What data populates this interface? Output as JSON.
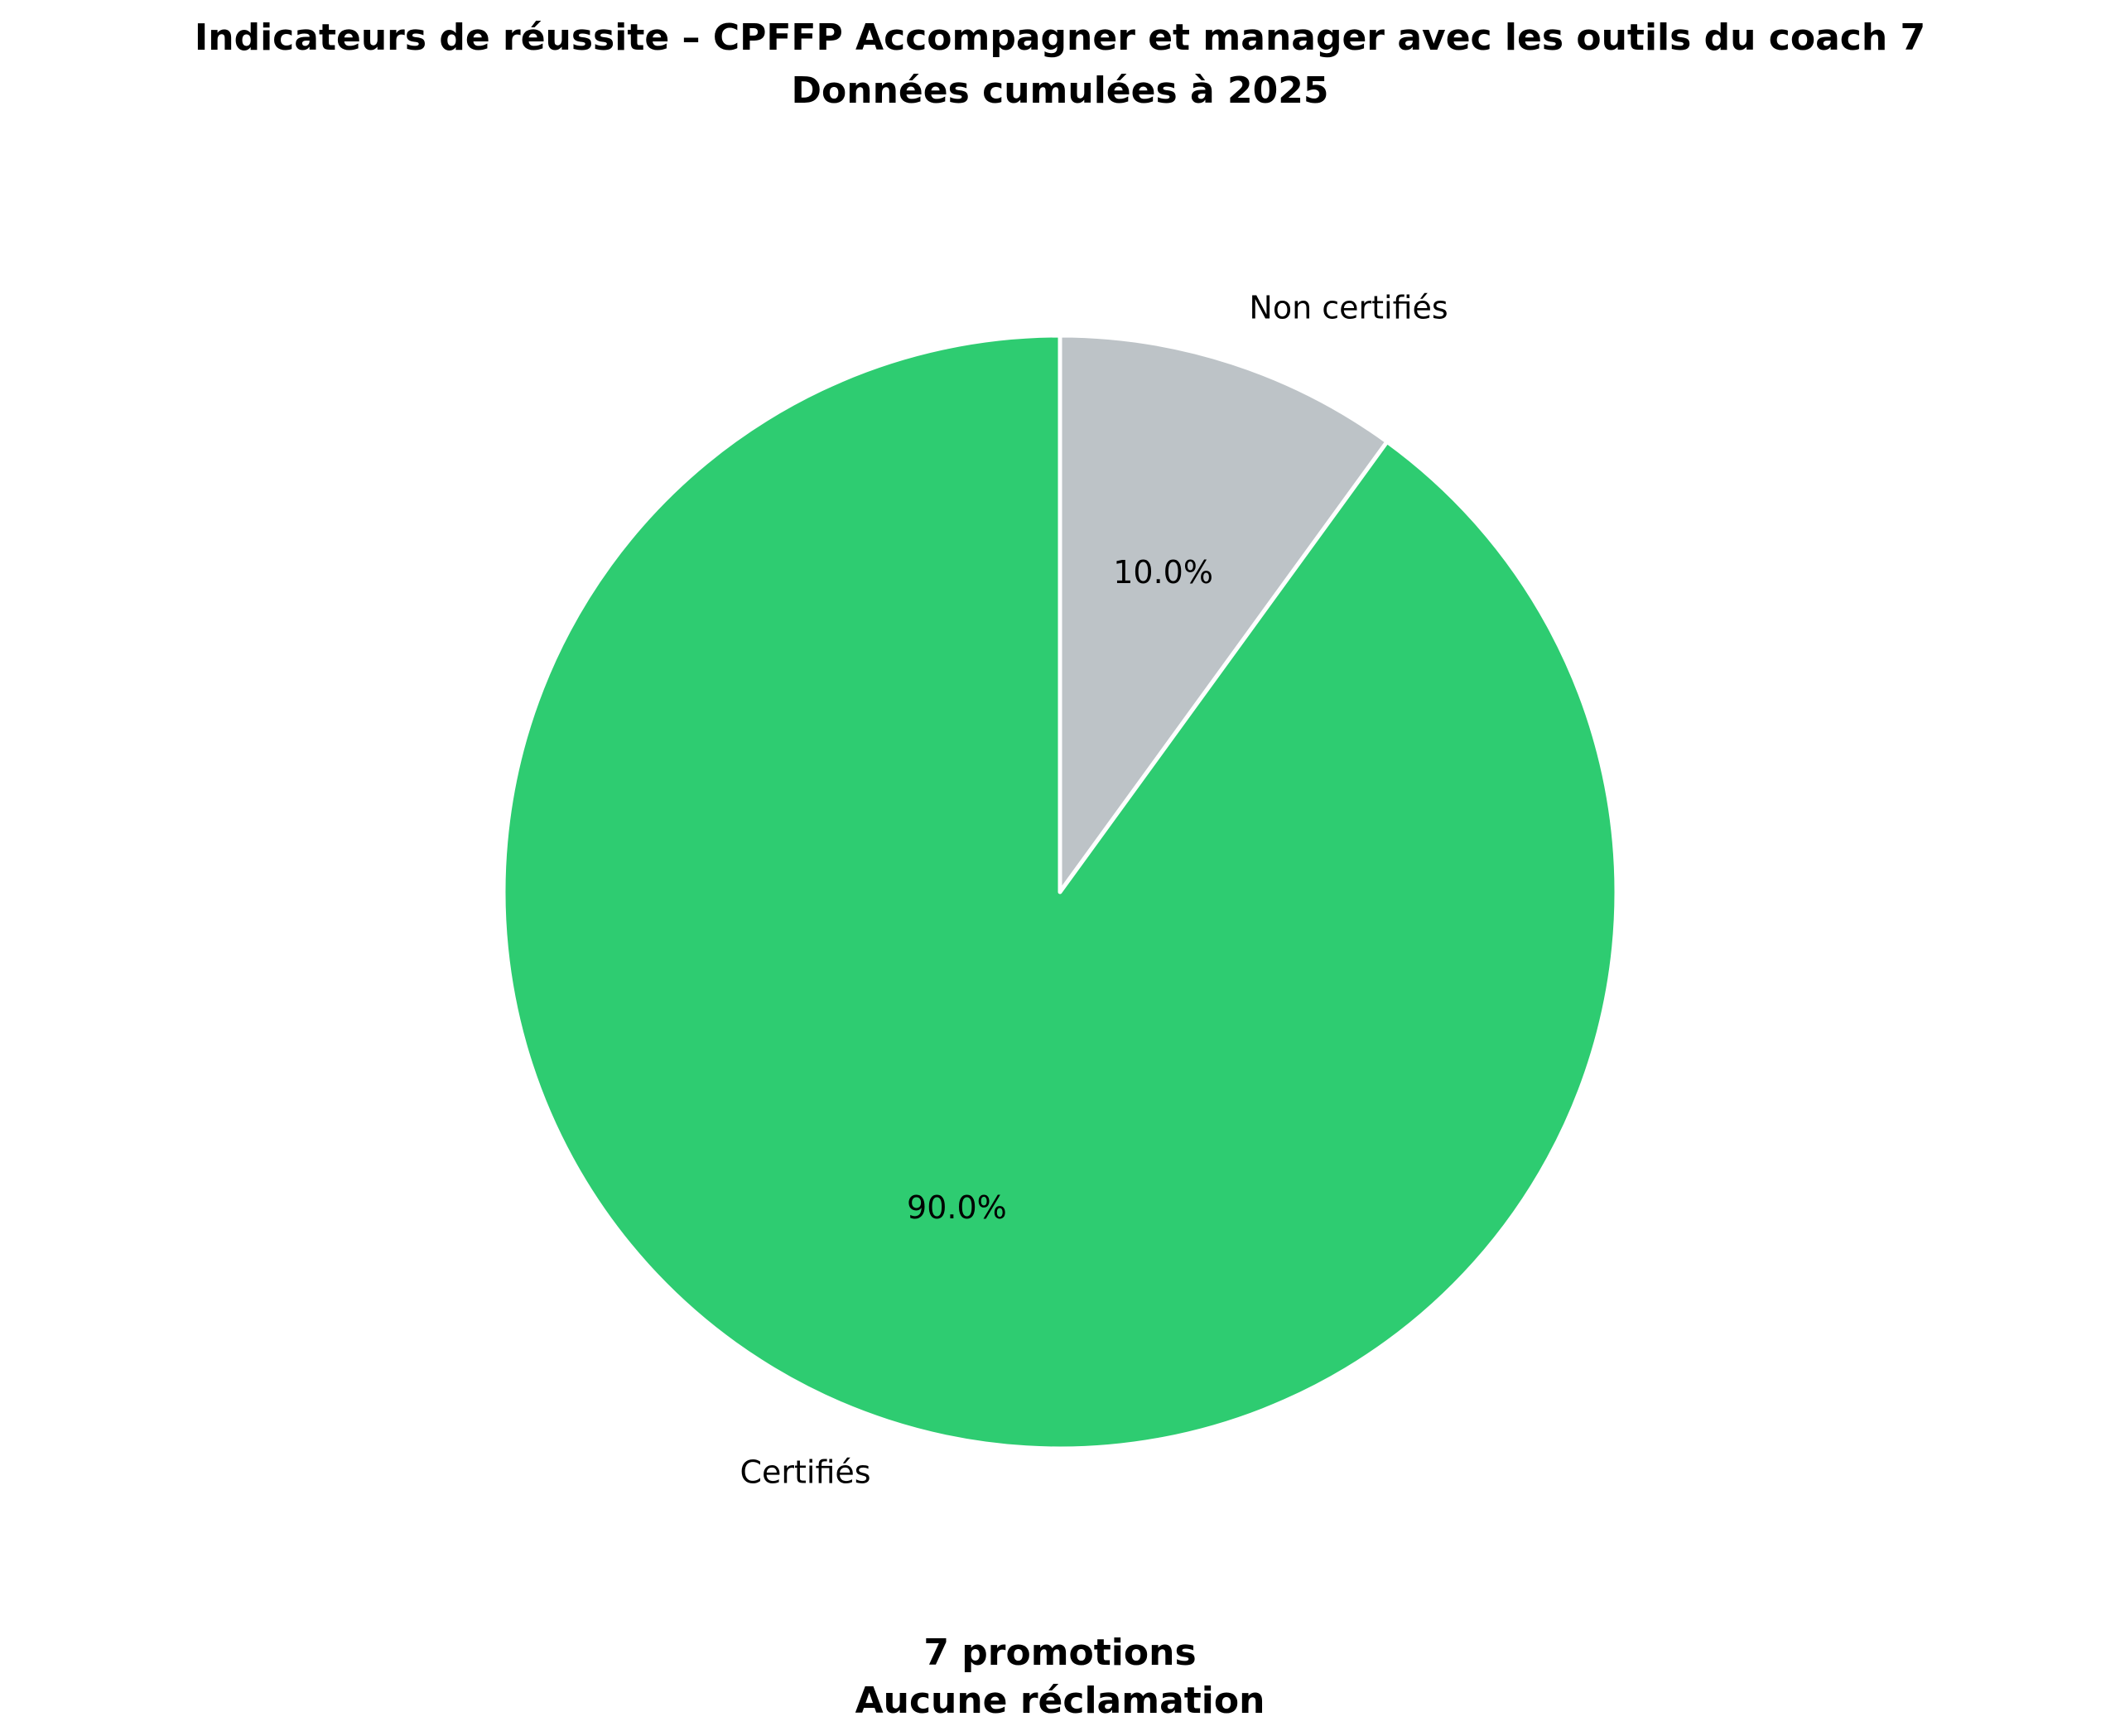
{
  "chart_data": {
    "type": "pie",
    "title": "Indicateurs de réussite – CPFFP Accompagner et manager avec les outils du coach 7",
    "subtitle": "Données cumulées à 2025",
    "categories": [
      "Non certifiés",
      "Certifiés"
    ],
    "values": [
      10.0,
      90.0
    ],
    "value_labels": [
      "10.0%",
      "90.0%"
    ],
    "colors": [
      "#bdc3c7",
      "#2ecc71"
    ],
    "start": "top, clockwise",
    "footer": [
      "7 promotions",
      "Aucune réclamation"
    ]
  }
}
